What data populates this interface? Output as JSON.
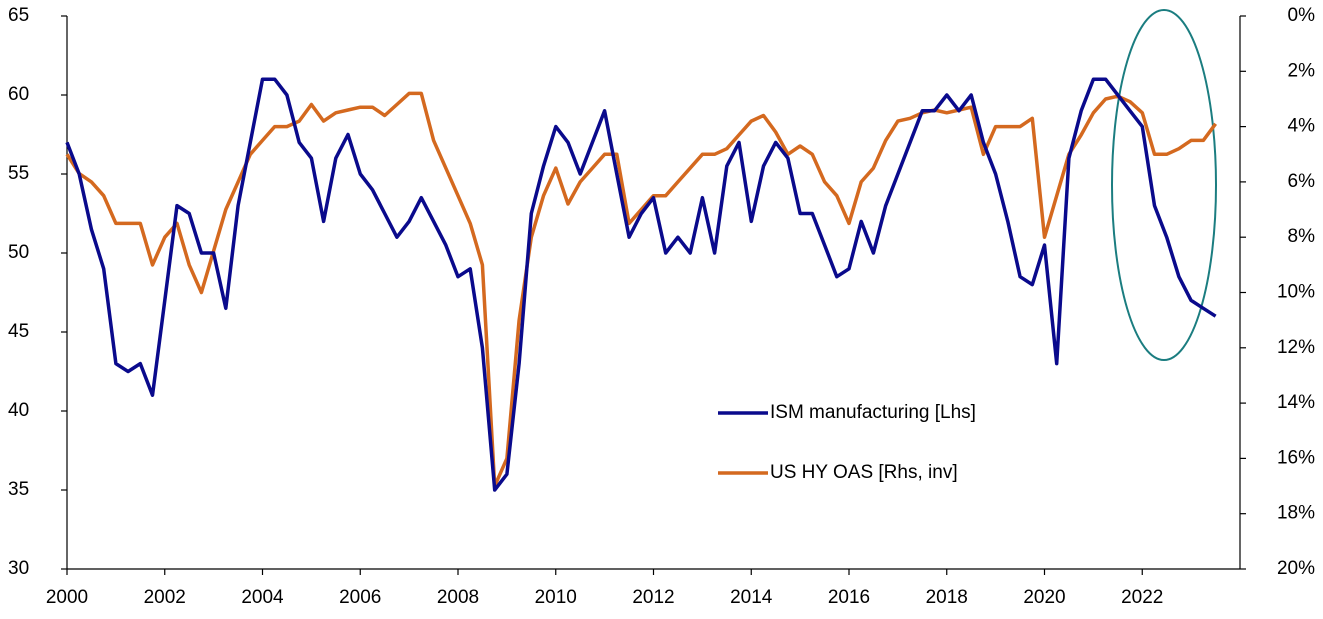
{
  "chart_data": {
    "type": "line",
    "x": [
      2000,
      2000.25,
      2000.5,
      2000.75,
      2001,
      2001.25,
      2001.5,
      2001.75,
      2002,
      2002.25,
      2002.5,
      2002.75,
      2003,
      2003.25,
      2003.5,
      2003.75,
      2004,
      2004.25,
      2004.5,
      2004.75,
      2005,
      2005.25,
      2005.5,
      2005.75,
      2006,
      2006.25,
      2006.5,
      2006.75,
      2007,
      2007.25,
      2007.5,
      2007.75,
      2008,
      2008.25,
      2008.5,
      2008.75,
      2009,
      2009.25,
      2009.5,
      2009.75,
      2010,
      2010.25,
      2010.5,
      2010.75,
      2011,
      2011.25,
      2011.5,
      2011.75,
      2012,
      2012.25,
      2012.5,
      2012.75,
      2013,
      2013.25,
      2013.5,
      2013.75,
      2014,
      2014.25,
      2014.5,
      2014.75,
      2015,
      2015.25,
      2015.5,
      2015.75,
      2016,
      2016.25,
      2016.5,
      2016.75,
      2017,
      2017.25,
      2017.5,
      2017.75,
      2018,
      2018.25,
      2018.5,
      2018.75,
      2019,
      2019.25,
      2019.5,
      2019.75,
      2020,
      2020.25,
      2020.5,
      2020.75,
      2021,
      2021.25,
      2021.5,
      2021.75,
      2022,
      2022.25,
      2022.5,
      2022.75,
      2023,
      2023.25,
      2023.5
    ],
    "series": [
      {
        "name": "ISM manufacturing [Lhs]",
        "color": "#0a0a8c",
        "axis": "y",
        "values": [
          57,
          55,
          51.5,
          49,
          43,
          42.5,
          43,
          41,
          47,
          53,
          52.5,
          50,
          50,
          46.5,
          53,
          57,
          61,
          61,
          60,
          57,
          56,
          52,
          56,
          57.5,
          55,
          54,
          52.5,
          51,
          52,
          53.5,
          52,
          50.5,
          48.5,
          49,
          44,
          35,
          36,
          43,
          52.5,
          55.5,
          58,
          57,
          55,
          57,
          59,
          55,
          51,
          52.5,
          53.5,
          50,
          51,
          50,
          53.5,
          50,
          55.5,
          57,
          52,
          55.5,
          57,
          56,
          52.5,
          52.5,
          50.5,
          48.5,
          49,
          52,
          50,
          53,
          55,
          57,
          59,
          59,
          60,
          59,
          60,
          57,
          55,
          52,
          48.5,
          48,
          50.5,
          43,
          56,
          59,
          61,
          61,
          60,
          59,
          58,
          53,
          51,
          48.5,
          47,
          46.5,
          46
        ]
      },
      {
        "name": "US HY OAS [Rhs, inv]",
        "color": "#d4691f",
        "axis": "y2",
        "values": [
          5,
          5.7,
          6,
          6.5,
          7.5,
          7.5,
          7.5,
          9,
          8,
          7.5,
          9,
          10,
          8.5,
          7,
          6,
          5,
          4.5,
          4,
          4,
          3.8,
          3.2,
          3.8,
          3.5,
          3.4,
          3.3,
          3.3,
          3.6,
          3.2,
          2.8,
          2.8,
          4.5,
          5.5,
          6.5,
          7.5,
          9,
          17,
          16,
          11,
          8,
          6.5,
          5.5,
          6.8,
          6,
          5.5,
          5,
          5,
          7.5,
          7,
          6.5,
          6.5,
          6,
          5.5,
          5,
          5,
          4.8,
          4.3,
          3.8,
          3.6,
          4.2,
          5,
          4.7,
          5,
          6,
          6.5,
          7.5,
          6,
          5.5,
          4.5,
          3.8,
          3.7,
          3.5,
          3.4,
          3.5,
          3.4,
          3.3,
          5,
          4,
          4,
          4,
          3.7,
          8,
          6.5,
          5,
          4.3,
          3.5,
          3,
          2.9,
          3.1,
          3.5,
          5,
          5,
          4.8,
          4.5,
          4.5,
          3.9
        ]
      }
    ],
    "xlim": [
      2000,
      2024
    ],
    "xticks": [
      2000,
      2002,
      2004,
      2006,
      2008,
      2010,
      2012,
      2014,
      2016,
      2018,
      2020,
      2022
    ],
    "ylim": [
      30,
      65
    ],
    "yticks": [
      30,
      35,
      40,
      45,
      50,
      55,
      60,
      65
    ],
    "y2lim": [
      0,
      20
    ],
    "y2_inverted": true,
    "y2ticks": [
      {
        "value": 0,
        "label": "0%"
      },
      {
        "value": 2,
        "label": "2%"
      },
      {
        "value": 4,
        "label": "4%"
      },
      {
        "value": 6,
        "label": "6%"
      },
      {
        "value": 8,
        "label": "8%"
      },
      {
        "value": 10,
        "label": "10%"
      },
      {
        "value": 12,
        "label": "12%"
      },
      {
        "value": 14,
        "label": "14%"
      },
      {
        "value": 16,
        "label": "16%"
      },
      {
        "value": 18,
        "label": "18%"
      },
      {
        "value": 20,
        "label": "20%"
      }
    ],
    "grid": false
  }
}
